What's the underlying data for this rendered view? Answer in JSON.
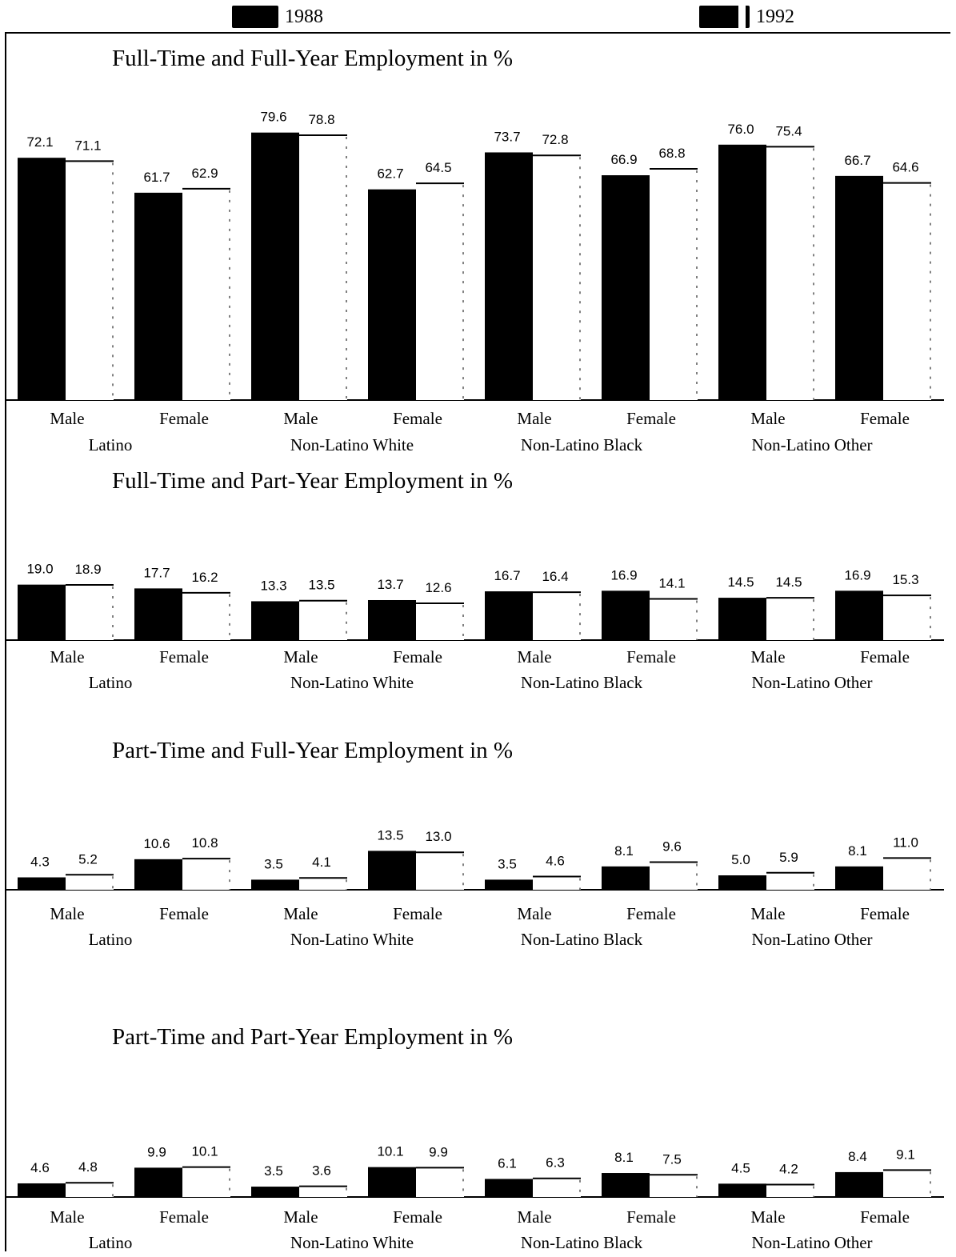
{
  "legend": [
    {
      "label": "1988",
      "color": "#000000"
    },
    {
      "label": "1992",
      "color": "#ffffff"
    }
  ],
  "chart_data": [
    {
      "type": "bar",
      "title": "Full-Time and Full-Year Employment in %",
      "groups": [
        "Latino",
        "Non-Latino White",
        "Non-Latino Black",
        "Non-Latino Other"
      ],
      "categories": [
        "Male",
        "Female",
        "Male",
        "Female",
        "Male",
        "Female",
        "Male",
        "Female"
      ],
      "series": [
        {
          "name": "1988",
          "values": [
            72.1,
            61.7,
            79.6,
            62.7,
            73.7,
            66.9,
            76.0,
            66.7
          ]
        },
        {
          "name": "1992",
          "values": [
            71.1,
            62.9,
            78.8,
            64.5,
            72.8,
            68.8,
            75.4,
            64.6
          ]
        }
      ]
    },
    {
      "type": "bar",
      "title": "Full-Time and Part-Year Employment in %",
      "groups": [
        "Latino",
        "Non-Latino White",
        "Non-Latino Black",
        "Non-Latino Other"
      ],
      "categories": [
        "Male",
        "Female",
        "Male",
        "Female",
        "Male",
        "Female",
        "Male",
        "Female"
      ],
      "series": [
        {
          "name": "1988",
          "values": [
            19.0,
            17.7,
            13.3,
            13.7,
            16.7,
            16.9,
            14.5,
            16.9
          ]
        },
        {
          "name": "1992",
          "values": [
            18.9,
            16.2,
            13.5,
            12.6,
            16.4,
            14.1,
            14.5,
            15.3
          ]
        }
      ]
    },
    {
      "type": "bar",
      "title": "Part-Time and Full-Year Employment in %",
      "groups": [
        "Latino",
        "Non-Latino White",
        "Non-Latino Black",
        "Non-Latino Other"
      ],
      "categories": [
        "Male",
        "Female",
        "Male",
        "Female",
        "Male",
        "Female",
        "Male",
        "Female"
      ],
      "series": [
        {
          "name": "1988",
          "values": [
            4.3,
            10.6,
            3.5,
            13.5,
            3.5,
            8.1,
            5.0,
            8.1
          ]
        },
        {
          "name": "1992",
          "values": [
            5.2,
            10.8,
            4.1,
            13.0,
            4.6,
            9.6,
            5.9,
            11.0
          ]
        }
      ]
    },
    {
      "type": "bar",
      "title": "Part-Time and Part-Year Employment in %",
      "groups": [
        "Latino",
        "Non-Latino White",
        "Non-Latino Black",
        "Non-Latino Other"
      ],
      "categories": [
        "Male",
        "Female",
        "Male",
        "Female",
        "Male",
        "Female",
        "Male",
        "Female"
      ],
      "series": [
        {
          "name": "1988",
          "values": [
            4.6,
            9.9,
            3.5,
            10.1,
            6.1,
            8.1,
            4.5,
            8.4
          ]
        },
        {
          "name": "1992",
          "values": [
            4.8,
            10.1,
            3.6,
            9.9,
            6.3,
            7.5,
            4.2,
            9.1
          ]
        }
      ]
    }
  ]
}
